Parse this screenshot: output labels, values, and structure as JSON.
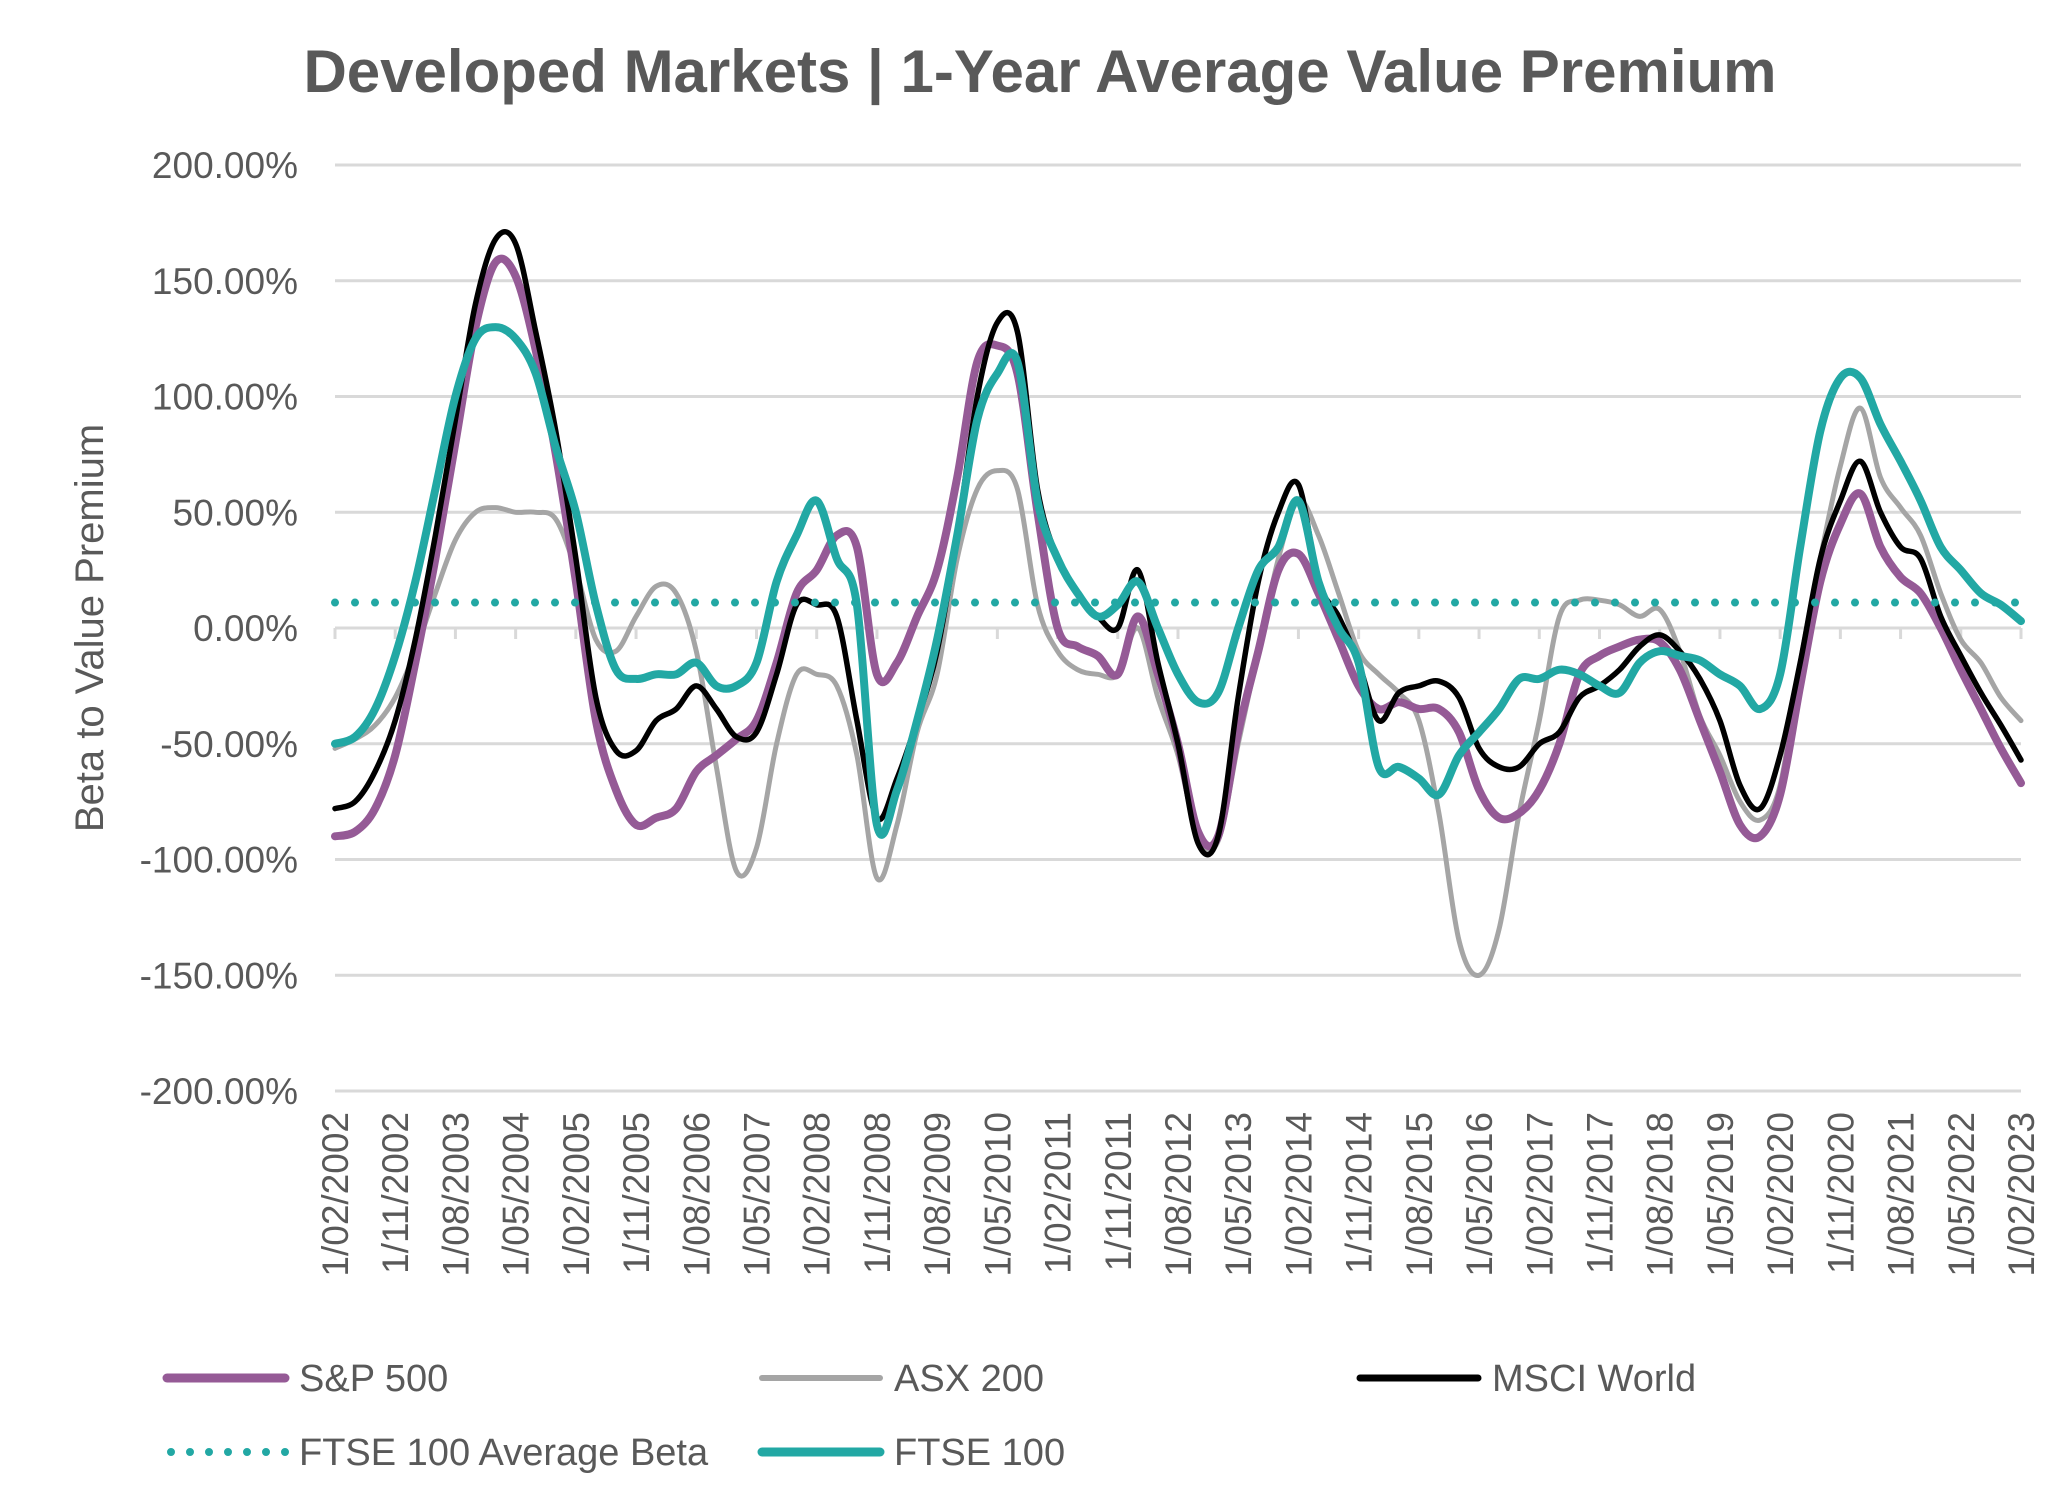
{
  "chart_data": {
    "type": "line",
    "title": "Developed Markets | 1-Year Average Value Premium",
    "xlabel": "",
    "ylabel": "Beta to Value Premium",
    "ylim": [
      -200,
      200
    ],
    "y_ticks": [
      200,
      150,
      100,
      50,
      0,
      -50,
      -100,
      -150,
      -200
    ],
    "y_tick_labels": [
      "200.00%",
      "150.00%",
      "100.00%",
      "50.00%",
      "0.00%",
      "-50.00%",
      "-100.00%",
      "-150.00%",
      "-200.00%"
    ],
    "x_tick_labels": [
      "1/02/2002",
      "1/11/2002",
      "1/08/2003",
      "1/05/2004",
      "1/02/2005",
      "1/11/2005",
      "1/08/2006",
      "1/05/2007",
      "1/02/2008",
      "1/11/2008",
      "1/08/2009",
      "1/05/2010",
      "1/02/2011",
      "1/11/2011",
      "1/08/2012",
      "1/05/2013",
      "1/02/2014",
      "1/11/2014",
      "1/08/2015",
      "1/05/2016",
      "1/02/2017",
      "1/11/2017",
      "1/08/2018",
      "1/05/2019",
      "1/02/2020",
      "1/11/2020",
      "1/08/2021",
      "1/05/2022",
      "1/02/2023"
    ],
    "x_unit": "quarterly samples starting 1/02/2002",
    "grid": true,
    "legend_position": "bottom",
    "series": [
      {
        "name": "S&P 500",
        "color": "#955A96",
        "style": "solid",
        "values": [
          -90,
          -88,
          -78,
          -55,
          -15,
          30,
          80,
          130,
          158,
          152,
          120,
          75,
          20,
          -40,
          -70,
          -85,
          -82,
          -78,
          -62,
          -55,
          -48,
          -40,
          -15,
          15,
          25,
          40,
          35,
          -20,
          -15,
          5,
          25,
          65,
          115,
          122,
          110,
          50,
          0,
          -8,
          -12,
          -20,
          5,
          -20,
          -50,
          -88,
          -90,
          -45,
          -10,
          25,
          32,
          15,
          -5,
          -25,
          -35,
          -32,
          -35,
          -35,
          -45,
          -70,
          -82,
          -80,
          -70,
          -50,
          -20,
          -12,
          -8,
          -5,
          -6,
          -18,
          -40,
          -62,
          -85,
          -90,
          -72,
          -25,
          20,
          45,
          58,
          35,
          22,
          15,
          0,
          -18,
          -35,
          -52,
          -67
        ]
      },
      {
        "name": "ASX 200",
        "color": "#A5A5A5",
        "style": "solid",
        "values": [
          -52,
          -48,
          -42,
          -30,
          -10,
          15,
          38,
          50,
          52,
          50,
          50,
          47,
          25,
          -5,
          -10,
          5,
          18,
          15,
          -10,
          -60,
          -105,
          -95,
          -50,
          -20,
          -20,
          -25,
          -55,
          -108,
          -85,
          -45,
          -20,
          30,
          60,
          68,
          60,
          10,
          -10,
          -18,
          -20,
          -20,
          0,
          -30,
          -55,
          -90,
          -92,
          -50,
          -10,
          30,
          55,
          40,
          15,
          -10,
          -20,
          -28,
          -40,
          -80,
          -135,
          -150,
          -130,
          -80,
          -40,
          5,
          12,
          12,
          10,
          5,
          8,
          -10,
          -38,
          -55,
          -75,
          -83,
          -68,
          -15,
          30,
          70,
          95,
          65,
          52,
          40,
          15,
          -5,
          -15,
          -30,
          -40
        ]
      },
      {
        "name": "MSCI World",
        "color": "#000000",
        "style": "solid",
        "values": [
          -78,
          -75,
          -62,
          -40,
          -5,
          40,
          90,
          140,
          168,
          166,
          128,
          85,
          30,
          -30,
          -53,
          -53,
          -40,
          -35,
          -25,
          -35,
          -47,
          -45,
          -20,
          10,
          10,
          5,
          -40,
          -82,
          -65,
          -40,
          -10,
          40,
          100,
          132,
          128,
          60,
          30,
          15,
          5,
          0,
          25,
          -15,
          -50,
          -93,
          -90,
          -30,
          20,
          50,
          62,
          20,
          5,
          -15,
          -40,
          -28,
          -25,
          -23,
          -30,
          -52,
          -60,
          -60,
          -50,
          -45,
          -30,
          -25,
          -18,
          -8,
          -3,
          -10,
          -22,
          -40,
          -68,
          -78,
          -55,
          -15,
          30,
          55,
          72,
          50,
          35,
          30,
          5,
          -12,
          -28,
          -42,
          -57
        ]
      },
      {
        "name": "FTSE 100 Average Beta",
        "color": "#22A8A4",
        "style": "dotted",
        "constant": 11
      },
      {
        "name": "FTSE 100",
        "color": "#22A8A4",
        "style": "solid",
        "values": [
          -50,
          -47,
          -35,
          -12,
          20,
          60,
          100,
          125,
          130,
          125,
          110,
          78,
          50,
          10,
          -18,
          -22,
          -20,
          -20,
          -15,
          -25,
          -25,
          -15,
          20,
          40,
          55,
          30,
          10,
          -85,
          -70,
          -40,
          -5,
          40,
          90,
          110,
          115,
          55,
          30,
          15,
          5,
          10,
          20,
          0,
          -20,
          -32,
          -28,
          0,
          25,
          35,
          55,
          20,
          0,
          -15,
          -60,
          -60,
          -65,
          -72,
          -55,
          -45,
          -35,
          -22,
          -22,
          -18,
          -20,
          -25,
          -28,
          -15,
          -10,
          -12,
          -14,
          -20,
          -25,
          -35,
          -20,
          35,
          85,
          108,
          108,
          88,
          72,
          55,
          35,
          25,
          15,
          10,
          3
        ]
      }
    ]
  },
  "legend": {
    "items": [
      {
        "label": "S&P 500",
        "color": "#955A96",
        "style": "solid"
      },
      {
        "label": "ASX 200",
        "color": "#A5A5A5",
        "style": "solid"
      },
      {
        "label": "MSCI World",
        "color": "#000000",
        "style": "solid"
      },
      {
        "label": "FTSE 100 Average Beta",
        "color": "#22A8A4",
        "style": "dotted"
      },
      {
        "label": "FTSE 100",
        "color": "#22A8A4",
        "style": "solid"
      }
    ]
  }
}
